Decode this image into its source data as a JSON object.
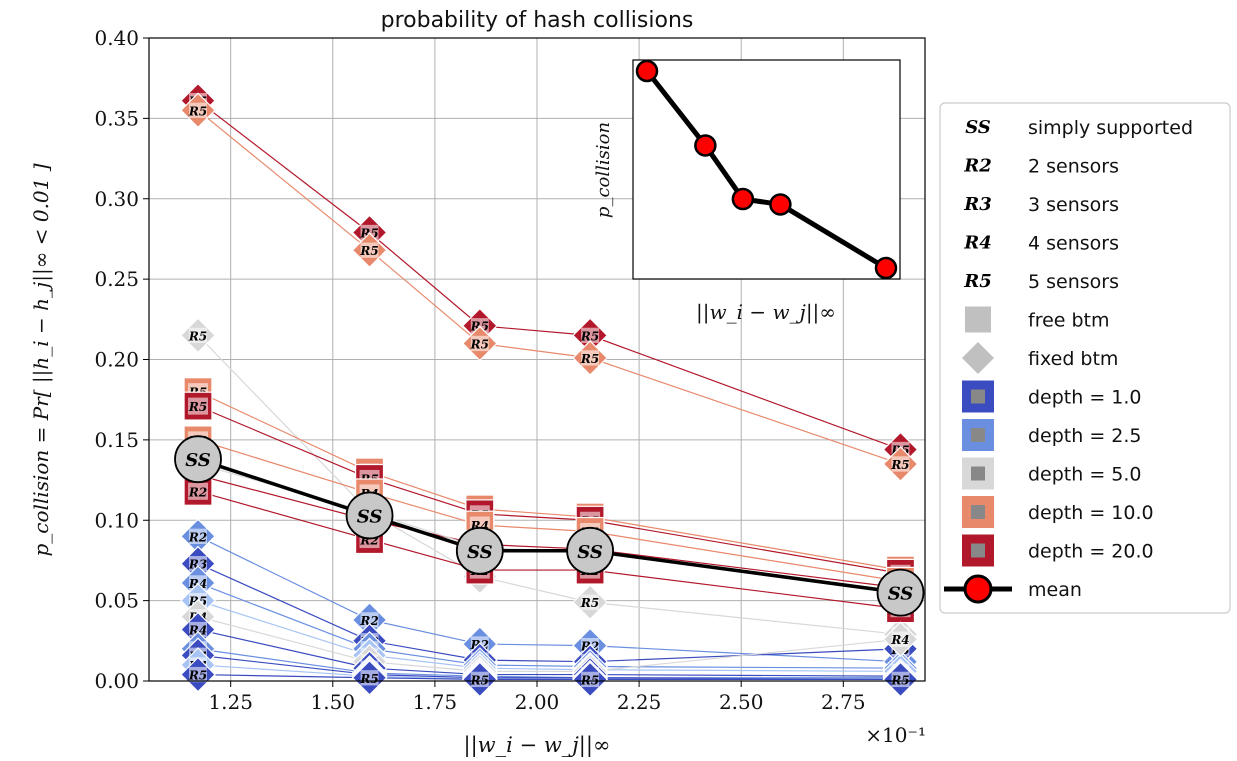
{
  "chart_data": {
    "type": "scatter",
    "title": "probability of hash collisions",
    "xlabel": "||w_i − w_j||∞",
    "ylabel": "p_collision = Pr[ ||h_i − h_j||∞ < 0.01 ]",
    "x_multiplier": "×10⁻¹",
    "xlim": [
      1.05,
      2.95
    ],
    "ylim": [
      0.0,
      0.4
    ],
    "x_ticks": [
      "1.25",
      "1.50",
      "1.75",
      "2.00",
      "2.25",
      "2.50",
      "2.75"
    ],
    "y_ticks": [
      "0.00",
      "0.05",
      "0.10",
      "0.15",
      "0.20",
      "0.25",
      "0.30",
      "0.35",
      "0.40"
    ],
    "grid": true,
    "legend_placement": "outside-right",
    "x": [
      1.17,
      1.59,
      1.86,
      2.13,
      2.89
    ],
    "series": [
      {
        "name": "",
        "marker": "fixed btm",
        "color": "#b2182b",
        "labels": [
          "R5",
          "R5",
          "R5",
          "R5",
          "R5"
        ],
        "values": [
          0.361,
          0.279,
          0.221,
          0.215,
          0.144
        ]
      },
      {
        "name": "",
        "marker": "fixed btm",
        "color": "#e8896b",
        "labels": [
          "R5",
          "R5",
          "R5",
          "R5",
          "R5"
        ],
        "values": [
          0.355,
          0.268,
          0.21,
          0.201,
          0.135
        ]
      },
      {
        "name": "",
        "marker": "fixed btm",
        "color": "#d8d8d8",
        "labels": [
          "R5",
          "R5",
          "R5",
          "R5",
          "R5"
        ],
        "values": [
          0.215,
          0.105,
          0.065,
          0.049,
          0.029
        ]
      },
      {
        "name": "",
        "marker": "free btm",
        "color": "#e8896b",
        "labels": [
          "R5",
          "R5",
          "R5",
          "R5",
          "R3"
        ],
        "values": [
          0.18,
          0.13,
          0.107,
          0.102,
          0.069
        ]
      },
      {
        "name": "",
        "marker": "free btm",
        "color": "#b2182b",
        "labels": [
          "R5",
          "R5",
          "R5",
          "R5",
          "R5"
        ],
        "values": [
          0.171,
          0.126,
          0.104,
          0.1,
          0.067
        ]
      },
      {
        "name": "",
        "marker": "free btm",
        "color": "#e8896b",
        "labels": [
          "R4",
          "R4",
          "R4",
          "R4",
          "R4"
        ],
        "values": [
          0.15,
          0.117,
          0.097,
          0.093,
          0.062
        ]
      },
      {
        "name": "",
        "marker": "free btm",
        "color": "#b2182b",
        "labels": [
          "R3",
          "R3",
          "R3",
          "R3",
          "R3"
        ],
        "values": [
          0.128,
          0.1,
          0.085,
          0.082,
          0.058
        ]
      },
      {
        "name": "",
        "marker": "free btm",
        "color": "#b2182b",
        "labels": [
          "R2",
          "R2",
          "R2",
          "R2",
          "R2"
        ],
        "values": [
          0.118,
          0.088,
          0.069,
          0.069,
          0.045
        ]
      },
      {
        "name": "",
        "marker": "free btm",
        "color": "#d8d8d8",
        "labels": [
          "R4",
          "R4",
          "R4",
          "R4",
          "R4"
        ],
        "values": [
          0.135,
          0.105,
          0.083,
          0.08,
          0.056
        ]
      },
      {
        "name": "",
        "marker": "fixed btm",
        "color": "#6a8fe0",
        "labels": [
          "R2",
          "R2",
          "R2",
          "R2",
          "R2"
        ],
        "values": [
          0.09,
          0.038,
          0.023,
          0.022,
          0.012
        ]
      },
      {
        "name": "",
        "marker": "fixed btm",
        "color": "#3b4cc0",
        "labels": [
          "R3",
          "R3",
          "R3",
          "R3",
          "R3"
        ],
        "values": [
          0.073,
          0.025,
          0.013,
          0.012,
          0.02
        ]
      },
      {
        "name": "",
        "marker": "fixed btm",
        "color": "#6a8fe0",
        "labels": [
          "R4",
          "R4",
          "R4",
          "R4",
          "R4"
        ],
        "values": [
          0.061,
          0.02,
          0.01,
          0.009,
          0.008
        ]
      },
      {
        "name": "",
        "marker": "fixed btm",
        "color": "#a8c4f5",
        "labels": [
          "R5",
          "R5",
          "R5",
          "R5",
          "R5"
        ],
        "values": [
          0.05,
          0.016,
          0.008,
          0.007,
          0.006
        ]
      },
      {
        "name": "",
        "marker": "fixed btm",
        "color": "#d8d8d8",
        "labels": [
          "R4",
          "R4",
          "R4",
          "R4",
          "R4"
        ],
        "values": [
          0.04,
          0.012,
          0.006,
          0.006,
          0.026
        ]
      },
      {
        "name": "",
        "marker": "fixed btm",
        "color": "#3b4cc0",
        "labels": [
          "R4",
          "R4",
          "R4",
          "R4",
          "R4"
        ],
        "values": [
          0.032,
          0.008,
          0.004,
          0.004,
          0.003
        ]
      },
      {
        "name": "",
        "marker": "fixed btm",
        "color": "#6a8fe0",
        "labels": [
          "R4",
          "R4",
          "R4",
          "R4",
          "R4"
        ],
        "values": [
          0.02,
          0.005,
          0.003,
          0.002,
          0.002
        ]
      },
      {
        "name": "",
        "marker": "fixed btm",
        "color": "#3b4cc0",
        "labels": [
          "R4",
          "R4",
          "R4",
          "R4",
          "R4"
        ],
        "values": [
          0.016,
          0.004,
          0.002,
          0.002,
          0.001
        ]
      },
      {
        "name": "",
        "marker": "fixed btm",
        "color": "#a8c4f5",
        "labels": [
          "R4",
          "R4",
          "R4",
          "R4",
          "R4"
        ],
        "values": [
          0.01,
          0.003,
          0.001,
          0.001,
          0.001
        ]
      },
      {
        "name": "",
        "marker": "fixed btm",
        "color": "#3b4cc0",
        "labels": [
          "R5",
          "R5",
          "R5",
          "R5",
          "R5"
        ],
        "values": [
          0.004,
          0.002,
          0.001,
          0.001,
          0.001
        ]
      }
    ],
    "mean": {
      "name": "mean",
      "label": "SS",
      "values": [
        0.138,
        0.103,
        0.081,
        0.081,
        0.055
      ]
    },
    "inset": {
      "xlabel": "||w_i − w_j||∞",
      "ylabel": "p_collision",
      "x": [
        1.17,
        1.59,
        1.86,
        2.13,
        2.89
      ],
      "values": [
        0.361,
        0.279,
        0.22,
        0.214,
        0.144
      ]
    }
  },
  "legend": {
    "items": [
      {
        "symbol": "SS",
        "label": "simply supported",
        "kind": "text"
      },
      {
        "symbol": "R2",
        "label": "2 sensors",
        "kind": "text"
      },
      {
        "symbol": "R3",
        "label": "3 sensors",
        "kind": "text"
      },
      {
        "symbol": "R4",
        "label": "4 sensors",
        "kind": "text"
      },
      {
        "symbol": "R5",
        "label": "5 sensors",
        "kind": "text"
      },
      {
        "symbol": "",
        "label": "free btm",
        "kind": "square",
        "color": "#c0c0c0"
      },
      {
        "symbol": "",
        "label": "fixed btm",
        "kind": "diamond",
        "color": "#c0c0c0"
      },
      {
        "symbol": "",
        "label": "depth = 1.0",
        "kind": "depth",
        "color": "#3b4cc0"
      },
      {
        "symbol": "",
        "label": "depth = 2.5",
        "kind": "depth",
        "color": "#6a8fe0"
      },
      {
        "symbol": "",
        "label": "depth = 5.0",
        "kind": "depth",
        "color": "#d8d8d8"
      },
      {
        "symbol": "",
        "label": "depth = 10.0",
        "kind": "depth",
        "color": "#e8896b"
      },
      {
        "symbol": "",
        "label": "depth = 20.0",
        "kind": "depth",
        "color": "#b2182b"
      },
      {
        "symbol": "",
        "label": "mean",
        "kind": "mean",
        "color": "#ff0000"
      }
    ]
  }
}
